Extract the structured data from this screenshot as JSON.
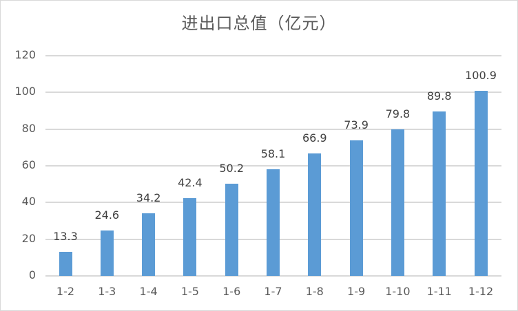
{
  "chart_data": {
    "type": "bar",
    "title": "进出口总值（亿元）",
    "xlabel": "",
    "ylabel": "",
    "categories": [
      "1-2",
      "1-3",
      "1-4",
      "1-5",
      "1-6",
      "1-7",
      "1-8",
      "1-9",
      "1-10",
      "1-11",
      "1-12"
    ],
    "values": [
      13.3,
      24.6,
      34.2,
      42.4,
      50.2,
      58.1,
      66.9,
      73.9,
      79.8,
      89.8,
      100.9
    ],
    "data_labels": [
      "13.3",
      "24.6",
      "34.2",
      "42.4",
      "50.2",
      "58.1",
      "66.9",
      "73.9",
      "79.8",
      "89.8",
      "100.9"
    ],
    "ylim": [
      0,
      120
    ],
    "yticks": [
      "0",
      "20",
      "40",
      "60",
      "80",
      "100",
      "120"
    ],
    "grid": true,
    "legend": "none",
    "bar_color": "#5b9bd5"
  }
}
